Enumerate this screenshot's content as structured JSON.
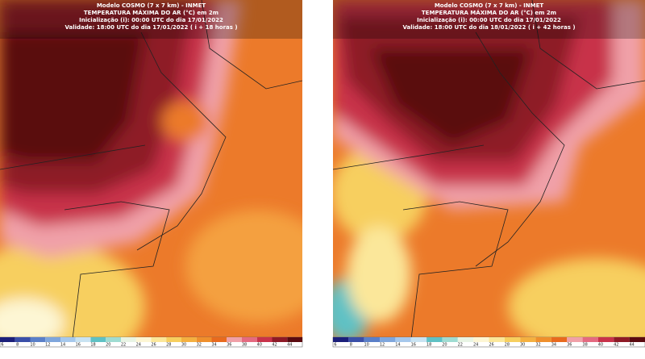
{
  "panels": [
    {
      "header": [
        "Modelo COSMO (7 x 7 km) - INMET",
        "TEMPERATURA MÁXIMA DO AR (°C) em 2m",
        "Inicialização (i): 00:00 UTC do dia 17/01/2022",
        "Validade: 18:00 UTC do dia 17/01/2022 ( i + 18 horas )"
      ],
      "colorbar_labels": [
        "6",
        "8",
        "10",
        "12",
        "14",
        "16",
        "18",
        "20",
        "22",
        "24",
        "26",
        "28",
        "30",
        "32",
        "34",
        "36",
        "38",
        "40",
        "42",
        "44"
      ]
    },
    {
      "header": [
        "Modelo COSMO (7 x 7 km) - INMET",
        "TEMPERATURA MÁXIMA DO AR (°C) em 2m",
        "Inicialização (i): 00:00 UTC do dia 17/01/2022",
        "Validade: 18:00 UTC do dia 18/01/2022 ( i + 42 horas )"
      ],
      "colorbar_labels": [
        "6",
        "8",
        "10",
        "12",
        "14",
        "16",
        "18",
        "20",
        "22",
        "24",
        "26",
        "28",
        "30",
        "32",
        "34",
        "36",
        "38",
        "40",
        "42",
        "44"
      ]
    }
  ],
  "colorbar_colors": [
    "#1b1f7a",
    "#3a4fa8",
    "#5a7fc8",
    "#7fa6dc",
    "#a6c8ec",
    "#c9e3f2",
    "#5fc1c4",
    "#9fdcd2",
    "#e8f4e4",
    "#fdf6d4",
    "#fbe79a",
    "#f7cf5e",
    "#f4b040",
    "#ef8f2c",
    "#e86a1e",
    "#f0a0a8",
    "#e46a80",
    "#c8324a",
    "#8e1a26",
    "#5a0a10"
  ]
}
